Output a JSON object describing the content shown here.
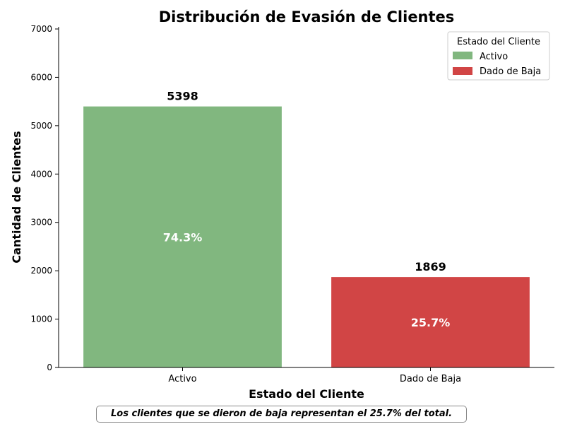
{
  "chart_data": {
    "type": "bar",
    "title": "Distribución de Evasión de Clientes",
    "xlabel": "Estado del Cliente",
    "ylabel": "Cantidad de Clientes",
    "categories": [
      "Activo",
      "Dado de Baja"
    ],
    "values": [
      5398,
      1869
    ],
    "percent_labels": [
      "74.3%",
      "25.7%"
    ],
    "colors": [
      "#81b77f",
      "#d14545"
    ],
    "ylim": [
      0,
      7000
    ],
    "yticks": [
      0,
      1000,
      2000,
      3000,
      4000,
      5000,
      6000,
      7000
    ],
    "grid": false,
    "legend": {
      "title": "Estado del Cliente",
      "placement": "top-right",
      "entries": [
        "Activo",
        "Dado de Baja"
      ]
    }
  },
  "note": "Los clientes que se dieron de baja representan el 25.7% del total."
}
